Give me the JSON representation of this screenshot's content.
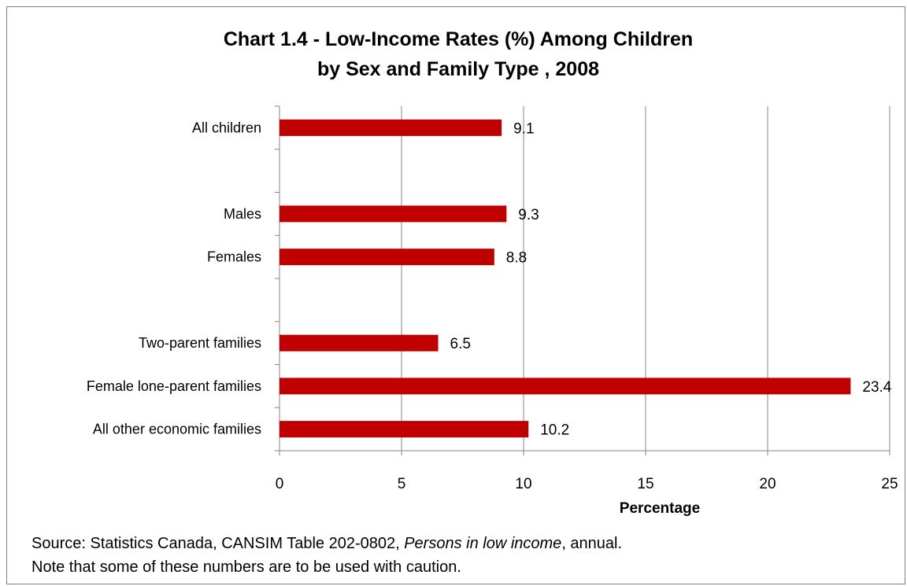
{
  "chart_data": {
    "type": "bar",
    "orientation": "horizontal",
    "title_line1": "Chart 1.4 - Low-Income Rates (%) Among Children",
    "title_line2": "by Sex and Family Type , 2008",
    "xlabel": "Percentage",
    "xlim": [
      0,
      25
    ],
    "xticks": [
      0,
      5,
      10,
      15,
      20,
      25
    ],
    "grid": true,
    "bar_color": "#c00000",
    "categories": [
      "All children",
      "",
      "Males",
      "Females",
      "",
      "Two-parent families",
      "Female lone-parent families",
      "All other economic families"
    ],
    "values": [
      9.1,
      null,
      9.3,
      8.8,
      null,
      6.5,
      23.4,
      10.2
    ],
    "data_labels": [
      "9.1",
      "",
      "9.3",
      "8.8",
      "",
      "6.5",
      "23.4",
      "10.2"
    ]
  },
  "footer": {
    "source_prefix": "Source: Statistics Canada, CANSIM Table 202-0802, ",
    "source_italic": "Persons in low income",
    "source_suffix": ", annual.",
    "note": "Note that some of these numbers are to be used with caution."
  }
}
